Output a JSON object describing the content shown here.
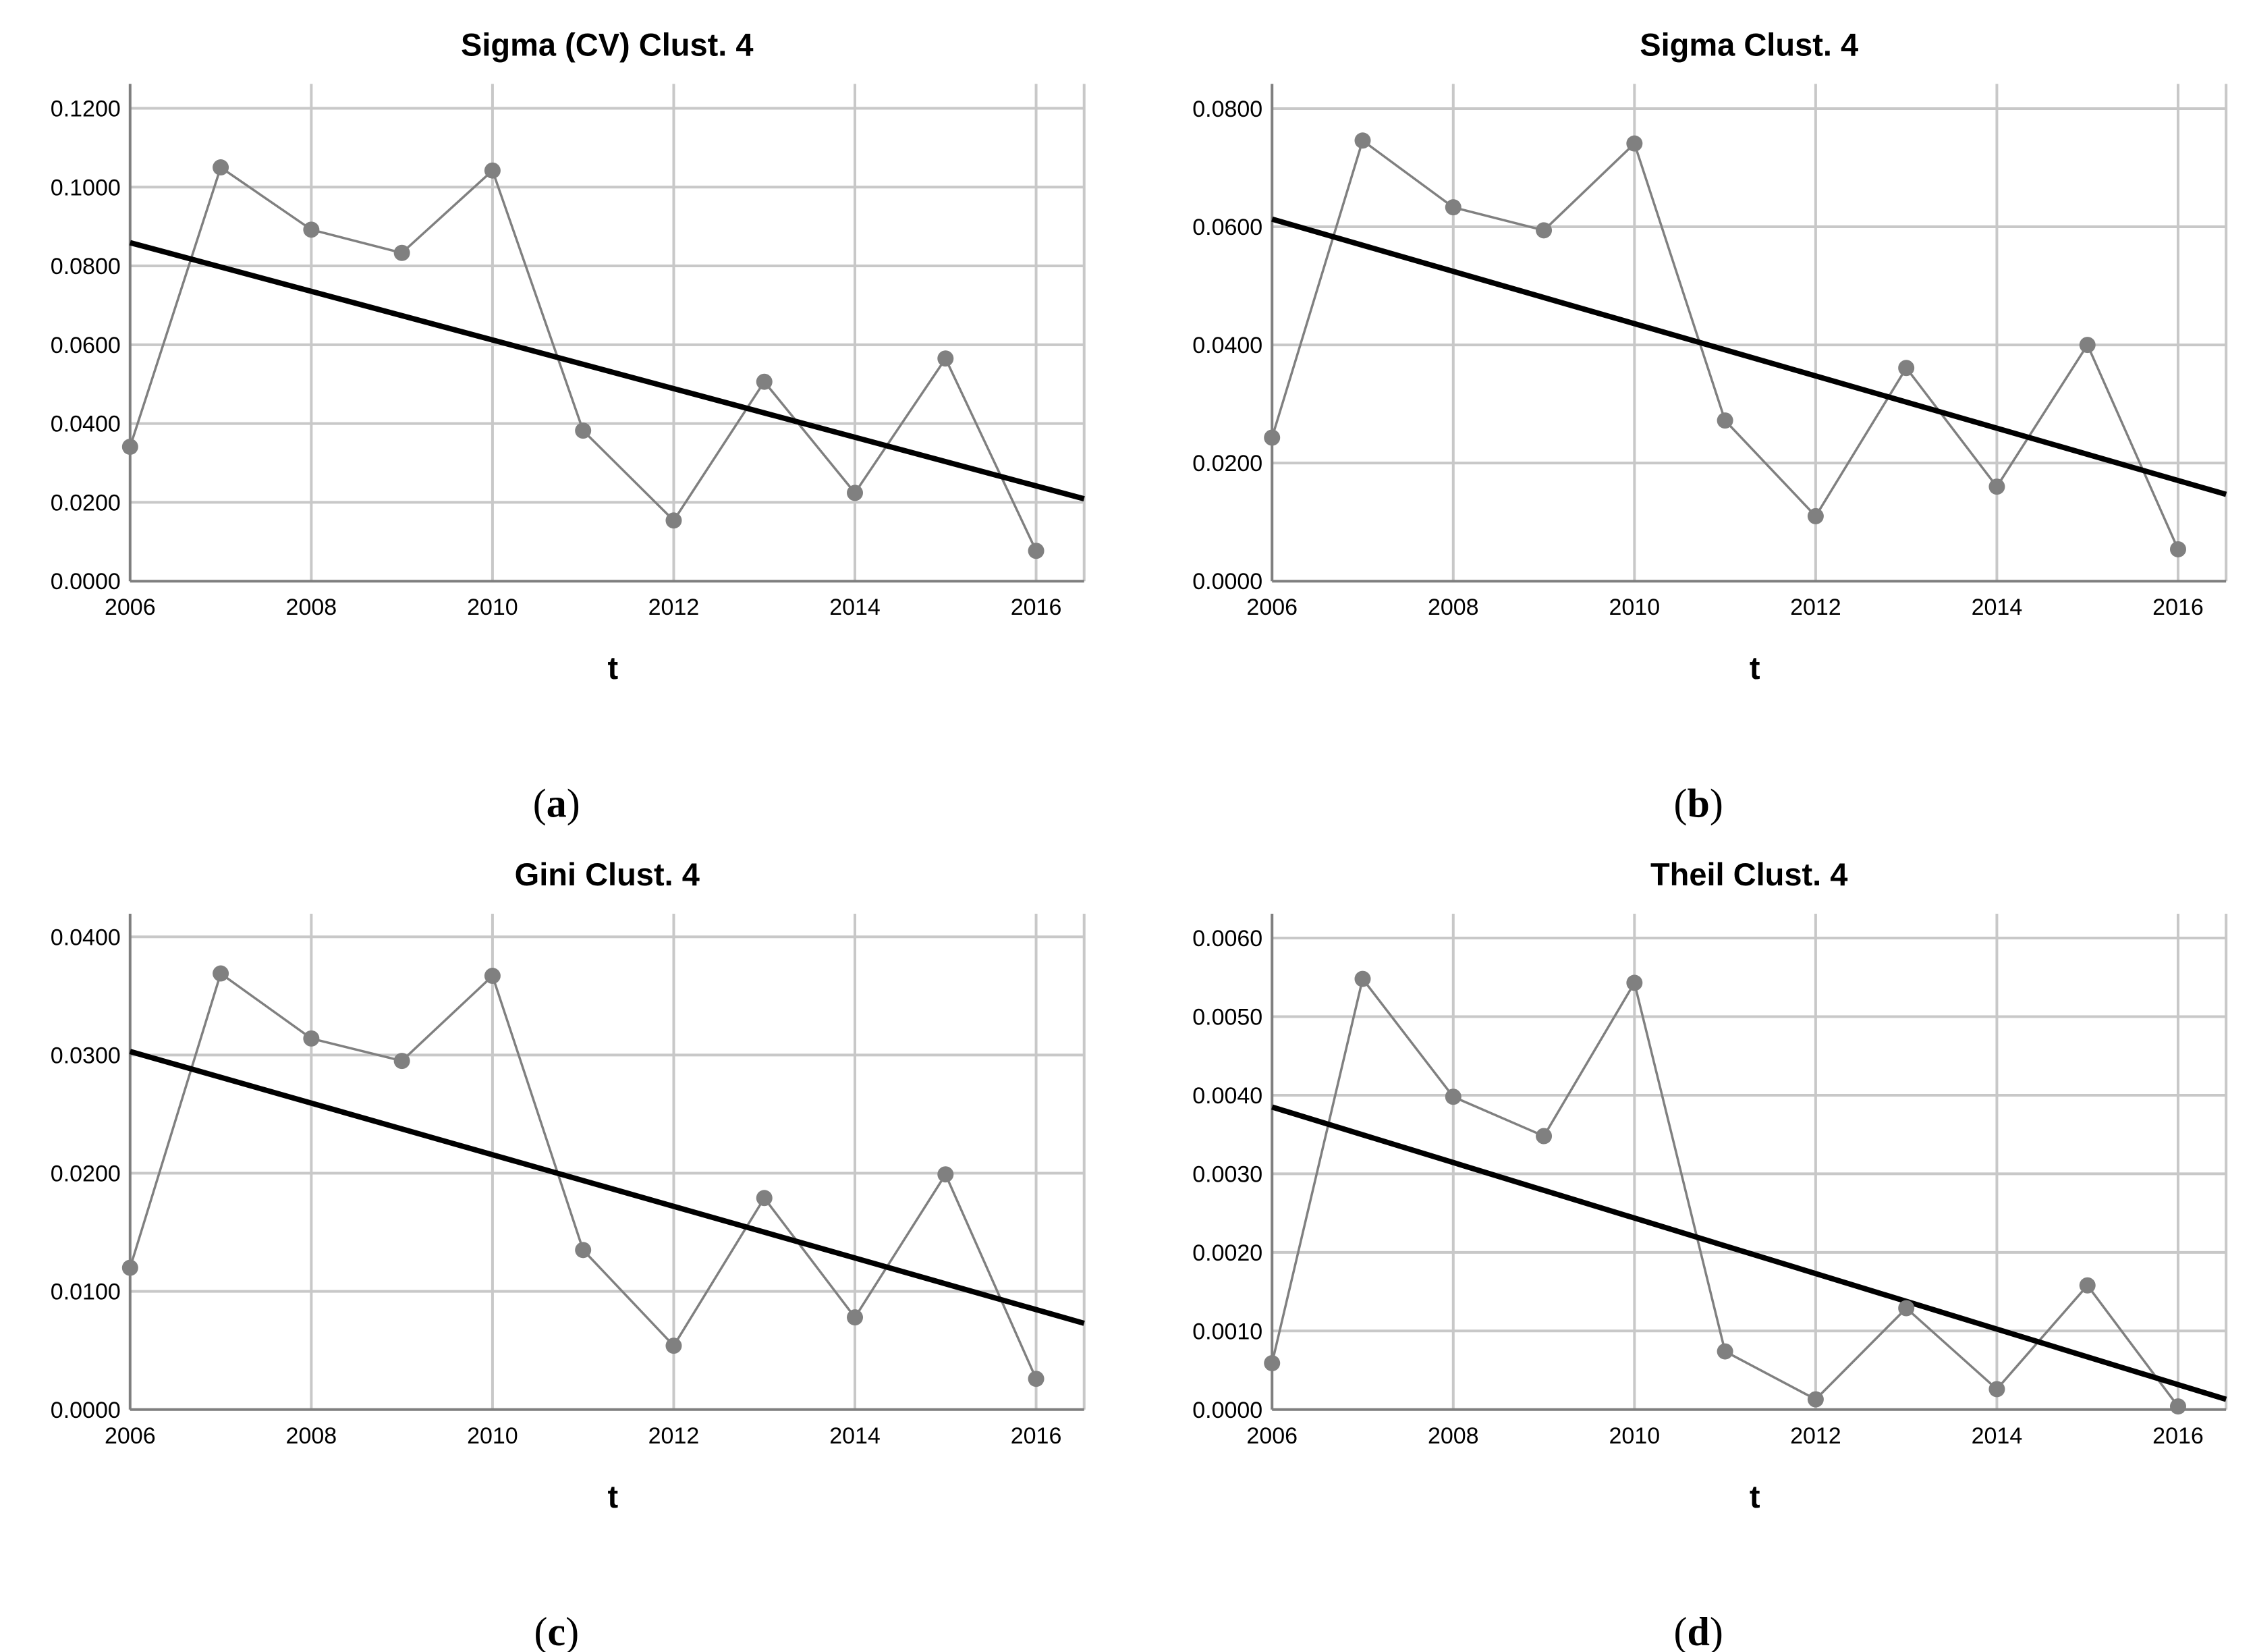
{
  "chart_data": [
    {
      "type": "line",
      "panel_label": "a",
      "title": "Sigma (CV) Clust. 4",
      "xlabel": "t",
      "ylabel": "",
      "xlim": [
        2006,
        2016.53
      ],
      "ylim": [
        0,
        0.1262
      ],
      "xticks": [
        2006,
        2008,
        2010,
        2012,
        2014,
        2016
      ],
      "yticks": [
        "0.0000",
        "0.0200",
        "0.0400",
        "0.0600",
        "0.0800",
        "0.1000",
        "0.1200"
      ],
      "grid": true,
      "x": [
        2006,
        2007,
        2008,
        2009,
        2010,
        2011,
        2012,
        2013,
        2014,
        2015,
        2016
      ],
      "values": [
        0.0341,
        0.105,
        0.0892,
        0.0833,
        0.1042,
        0.0382,
        0.0154,
        0.0506,
        0.0224,
        0.0565,
        0.0077
      ],
      "trend": {
        "x": [
          2006,
          2016.53
        ],
        "y": [
          0.0859,
          0.0209
        ]
      }
    },
    {
      "type": "line",
      "panel_label": "b",
      "title": "Sigma Clust. 4",
      "xlabel": "t",
      "ylabel": "",
      "xlim": [
        2006,
        2016.53
      ],
      "ylim": [
        0,
        0.0842
      ],
      "xticks": [
        2006,
        2008,
        2010,
        2012,
        2014,
        2016
      ],
      "yticks": [
        "0.0000",
        "0.0200",
        "0.0400",
        "0.0600",
        "0.0800"
      ],
      "grid": true,
      "x": [
        2006,
        2007,
        2008,
        2009,
        2010,
        2011,
        2012,
        2013,
        2014,
        2015,
        2016
      ],
      "values": [
        0.0243,
        0.0746,
        0.0633,
        0.0594,
        0.0741,
        0.0272,
        0.011,
        0.0361,
        0.016,
        0.04,
        0.0054
      ],
      "trend": {
        "x": [
          2006,
          2016.53
        ],
        "y": [
          0.0613,
          0.0147
        ]
      }
    },
    {
      "type": "line",
      "panel_label": "c",
      "title": "Gini Clust. 4",
      "xlabel": "t",
      "ylabel": "",
      "xlim": [
        2006,
        2016.53
      ],
      "ylim": [
        0,
        0.04196
      ],
      "xticks": [
        2006,
        2008,
        2010,
        2012,
        2014,
        2016
      ],
      "yticks": [
        "0.0000",
        "0.0100",
        "0.0200",
        "0.0300",
        "0.0400"
      ],
      "grid": true,
      "x": [
        2006,
        2007,
        2008,
        2009,
        2010,
        2011,
        2012,
        2013,
        2014,
        2015,
        2016
      ],
      "values": [
        0.012,
        0.0369,
        0.0314,
        0.0295,
        0.0367,
        0.0135,
        0.0054,
        0.0179,
        0.0078,
        0.0199,
        0.0026
      ],
      "trend": {
        "x": [
          2006,
          2016.53
        ],
        "y": [
          0.0303,
          0.0073
        ]
      }
    },
    {
      "type": "line",
      "panel_label": "d",
      "title": "Theil Clust. 4",
      "xlabel": "t",
      "ylabel": "",
      "xlim": [
        2006,
        2016.53
      ],
      "ylim": [
        0,
        0.00631
      ],
      "xticks": [
        2006,
        2008,
        2010,
        2012,
        2014,
        2016
      ],
      "yticks": [
        "0.0000",
        "0.0010",
        "0.0020",
        "0.0030",
        "0.0040",
        "0.0050",
        "0.0060"
      ],
      "grid": true,
      "x": [
        2006,
        2007,
        2008,
        2009,
        2010,
        2011,
        2012,
        2013,
        2014,
        2015,
        2016
      ],
      "values": [
        0.00059,
        0.00548,
        0.00398,
        0.00348,
        0.00543,
        0.00074,
        0.00013,
        0.00129,
        0.00026,
        0.00158,
        4e-05
      ],
      "trend": {
        "x": [
          2006,
          2016.53
        ],
        "y": [
          0.00385,
          0.00013
        ]
      }
    }
  ],
  "colors": {
    "series": "#808080",
    "trend": "#000000",
    "grid": "#c8c8c8",
    "axis": "#7f7f7f"
  }
}
